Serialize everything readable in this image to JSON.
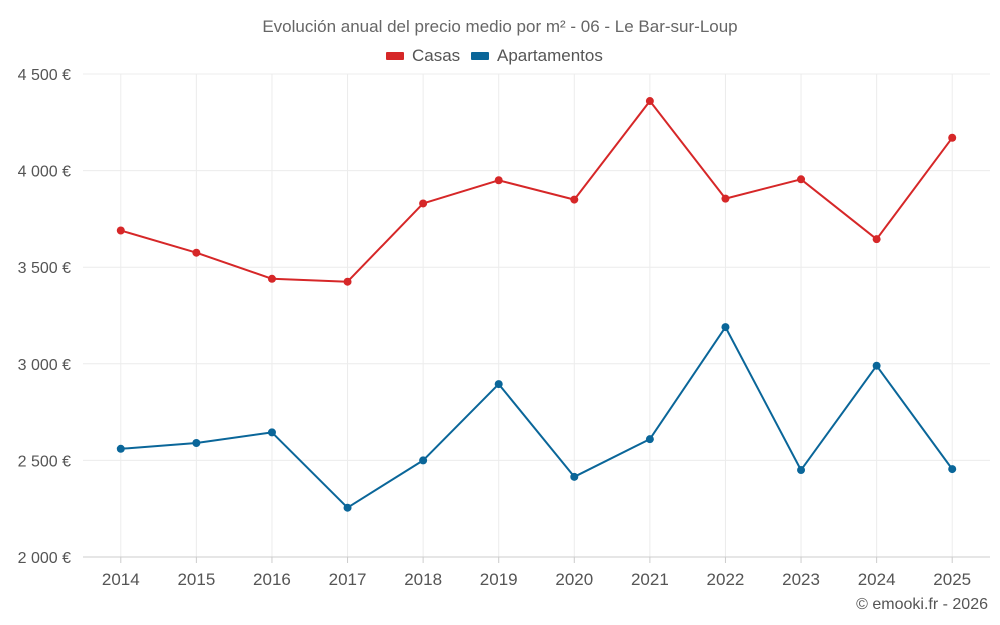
{
  "chart_data": {
    "type": "line",
    "title": "Evolución anual del precio medio por m² - 06 - Le Bar-sur-Loup",
    "categories": [
      "2014",
      "2015",
      "2016",
      "2017",
      "2018",
      "2019",
      "2020",
      "2021",
      "2022",
      "2023",
      "2024",
      "2025"
    ],
    "series": [
      {
        "name": "Casas",
        "color": "#d62728",
        "values": [
          3690,
          3575,
          3440,
          3425,
          3830,
          3950,
          3850,
          4360,
          3855,
          3955,
          3645,
          4170
        ]
      },
      {
        "name": "Apartamentos",
        "color": "#0a6699",
        "values": [
          2560,
          2590,
          2645,
          2255,
          2500,
          2895,
          2415,
          2610,
          3190,
          2450,
          2990,
          2455
        ]
      }
    ],
    "ylim": [
      2000,
      4500
    ],
    "yticks": [
      2000,
      2500,
      3000,
      3500,
      4000,
      4500
    ],
    "ytick_labels": [
      "2 000 €",
      "2 500 €",
      "3 000 €",
      "3 500 €",
      "4 000 €",
      "4 500 €"
    ],
    "xlabel": "",
    "ylabel": "",
    "legend_position": "top-center",
    "grid": true
  },
  "credit": "© emooki.fr - 2026"
}
